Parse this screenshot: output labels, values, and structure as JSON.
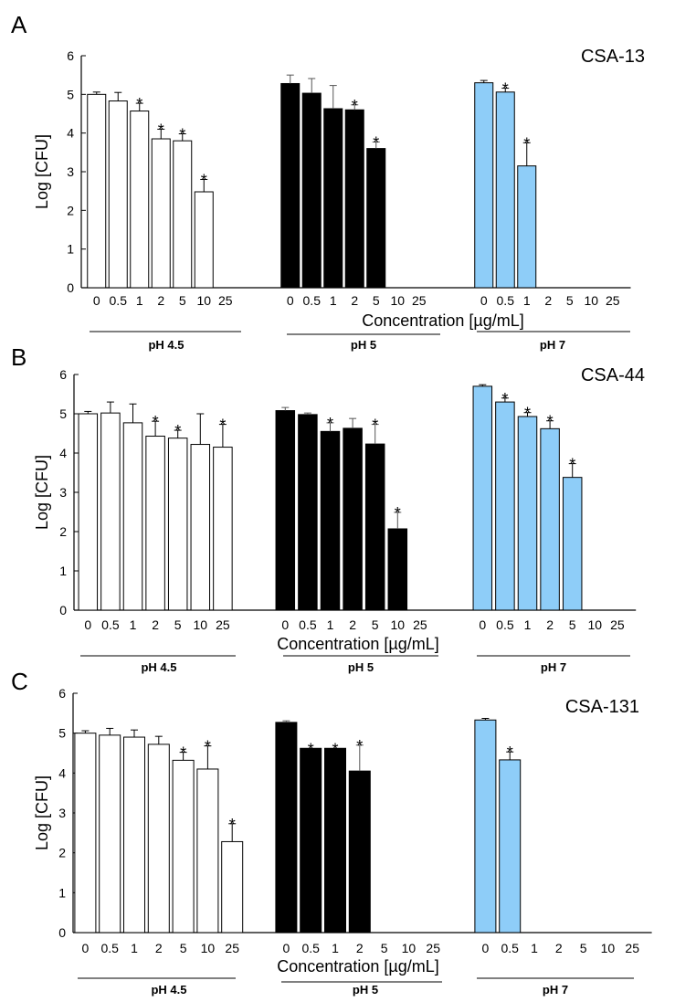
{
  "chart_data": [
    {
      "type": "bar",
      "panel": "A",
      "title": "CSA-13",
      "ylabel": "Log [CFU]",
      "xlabel": "Concentration [µg/mL]",
      "ylim": [
        0,
        6
      ],
      "yticks": [
        "0",
        "1",
        "2",
        "3",
        "4",
        "5",
        "6"
      ],
      "categories": [
        "0",
        "0.5",
        "1",
        "2",
        "5",
        "10",
        "25"
      ],
      "groups": [
        {
          "name": "pH 4.5",
          "color": "#ffffff",
          "values": [
            5.0,
            4.83,
            4.57,
            3.85,
            3.8,
            2.48,
            null
          ],
          "errors": [
            0.06,
            0.22,
            0.2,
            0.25,
            0.18,
            0.32,
            null
          ],
          "significant": [
            false,
            false,
            true,
            true,
            true,
            true,
            false
          ]
        },
        {
          "name": "pH 5",
          "color": "#000000",
          "values": [
            5.28,
            5.03,
            4.63,
            4.6,
            3.6,
            null,
            null
          ],
          "errors": [
            0.22,
            0.38,
            0.6,
            0.13,
            0.17,
            null,
            null
          ],
          "significant": [
            false,
            false,
            false,
            true,
            true,
            false,
            false
          ]
        },
        {
          "name": "pH 7",
          "color": "#8ecdf8",
          "values": [
            5.3,
            5.06,
            3.15,
            null,
            null,
            null,
            null
          ],
          "errors": [
            0.06,
            0.1,
            0.6,
            null,
            null,
            null,
            null
          ],
          "significant": [
            false,
            true,
            true,
            false,
            false,
            false,
            false
          ]
        }
      ]
    },
    {
      "type": "bar",
      "panel": "B",
      "title": "CSA-44",
      "ylabel": "Log [CFU]",
      "xlabel": "Concentration [µg/mL]",
      "ylim": [
        0,
        6
      ],
      "yticks": [
        "0",
        "1",
        "2",
        "3",
        "4",
        "5",
        "6"
      ],
      "categories": [
        "0",
        "0.5",
        "1",
        "2",
        "5",
        "10",
        "25"
      ],
      "groups": [
        {
          "name": "pH 4.5",
          "color": "#ffffff",
          "values": [
            5.0,
            5.02,
            4.77,
            4.43,
            4.38,
            4.22,
            4.15
          ],
          "errors": [
            0.06,
            0.28,
            0.48,
            0.38,
            0.2,
            0.78,
            0.58
          ],
          "significant": [
            false,
            false,
            false,
            true,
            true,
            false,
            true
          ]
        },
        {
          "name": "pH 5",
          "color": "#000000",
          "values": [
            5.08,
            4.98,
            4.55,
            4.63,
            4.23,
            2.07,
            null
          ],
          "errors": [
            0.08,
            0.04,
            0.22,
            0.25,
            0.5,
            0.42,
            null
          ],
          "significant": [
            false,
            false,
            true,
            false,
            true,
            true,
            false
          ]
        },
        {
          "name": "pH 7",
          "color": "#8ecdf8",
          "values": [
            5.7,
            5.3,
            4.93,
            4.62,
            3.38,
            null,
            null
          ],
          "errors": [
            0.04,
            0.1,
            0.1,
            0.2,
            0.35,
            null,
            null
          ],
          "significant": [
            false,
            true,
            true,
            true,
            true,
            false,
            false
          ]
        }
      ]
    },
    {
      "type": "bar",
      "panel": "C",
      "title": "CSA-131",
      "ylabel": "Log [CFU]",
      "xlabel": "Concentration [µg/mL]",
      "ylim": [
        0,
        6
      ],
      "yticks": [
        "0",
        "1",
        "2",
        "3",
        "4",
        "5",
        "6"
      ],
      "categories": [
        "0",
        "0.5",
        "1",
        "2",
        "5",
        "10",
        "25"
      ],
      "groups": [
        {
          "name": "pH 4.5",
          "color": "#ffffff",
          "values": [
            5.0,
            4.95,
            4.9,
            4.72,
            4.32,
            4.1,
            2.28
          ],
          "errors": [
            0.06,
            0.17,
            0.18,
            0.2,
            0.2,
            0.58,
            0.45
          ],
          "significant": [
            false,
            false,
            false,
            false,
            true,
            true,
            true
          ]
        },
        {
          "name": "pH 5",
          "color": "#000000",
          "values": [
            5.27,
            4.62,
            4.62,
            4.05,
            null,
            null,
            null
          ],
          "errors": [
            0.04,
            0.0,
            0.0,
            0.65,
            null,
            null,
            null
          ],
          "significant": [
            false,
            true,
            true,
            true,
            false,
            false,
            false
          ]
        },
        {
          "name": "pH 7",
          "color": "#8ecdf8",
          "values": [
            5.33,
            4.33,
            null,
            null,
            null,
            null,
            null
          ],
          "errors": [
            0.04,
            0.2,
            null,
            null,
            null,
            null,
            null
          ],
          "significant": [
            false,
            true,
            false,
            false,
            false,
            false,
            false
          ]
        }
      ]
    }
  ],
  "significance_marker": "*"
}
